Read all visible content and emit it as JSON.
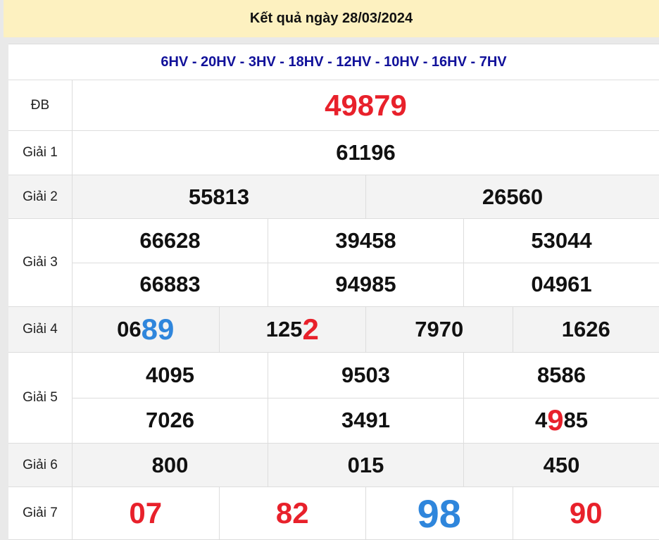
{
  "header": {
    "title": "Kết quả ngày 28/03/2024"
  },
  "codes": "6HV - 20HV - 3HV - 18HV - 12HV - 10HV - 16HV - 7HV",
  "colors": {
    "red": "#e8212b",
    "blue": "#2f86dc",
    "black": "#111111",
    "navy": "#11119a",
    "header_bg": "#fdf1c0"
  },
  "prizes": [
    {
      "label": "ĐB",
      "gray": false,
      "lines": [
        [
          [
            {
              "t": "49879",
              "c": "red",
              "s": "big"
            }
          ]
        ]
      ]
    },
    {
      "label": "Giải 1",
      "gray": false,
      "lines": [
        [
          [
            {
              "t": "61196"
            }
          ]
        ]
      ]
    },
    {
      "label": "Giải 2",
      "gray": true,
      "lines": [
        [
          [
            {
              "t": "55813"
            }
          ],
          [
            {
              "t": "26560"
            }
          ]
        ]
      ]
    },
    {
      "label": "Giải 3",
      "gray": false,
      "lines": [
        [
          [
            {
              "t": "66628"
            }
          ],
          [
            {
              "t": "39458"
            }
          ],
          [
            {
              "t": "53044"
            }
          ]
        ],
        [
          [
            {
              "t": "66883"
            }
          ],
          [
            {
              "t": "94985"
            }
          ],
          [
            {
              "t": "04961"
            }
          ]
        ]
      ]
    },
    {
      "label": "Giải 4",
      "gray": true,
      "lines": [
        [
          [
            {
              "t": "06"
            },
            {
              "t": "89",
              "c": "blue",
              "s": "big"
            }
          ],
          [
            {
              "t": "125"
            },
            {
              "t": "2",
              "c": "red",
              "s": "big"
            }
          ],
          [
            {
              "t": "7970"
            }
          ],
          [
            {
              "t": "1626"
            }
          ]
        ]
      ]
    },
    {
      "label": "Giải 5",
      "gray": false,
      "lines": [
        [
          [
            {
              "t": "4095"
            }
          ],
          [
            {
              "t": "9503"
            }
          ],
          [
            {
              "t": "8586"
            }
          ]
        ],
        [
          [
            {
              "t": "7026"
            }
          ],
          [
            {
              "t": "3491"
            }
          ],
          [
            {
              "t": "4"
            },
            {
              "t": "9",
              "c": "red",
              "s": "big"
            },
            {
              "t": "85"
            }
          ]
        ]
      ]
    },
    {
      "label": "Giải 6",
      "gray": true,
      "lines": [
        [
          [
            {
              "t": "800"
            }
          ],
          [
            {
              "t": "015"
            }
          ],
          [
            {
              "t": "450"
            }
          ]
        ]
      ]
    },
    {
      "label": "Giải 7",
      "gray": false,
      "lines": [
        [
          [
            {
              "t": "07",
              "c": "red",
              "s": "big"
            }
          ],
          [
            {
              "t": "82",
              "c": "red",
              "s": "big"
            }
          ],
          [
            {
              "t": "98",
              "c": "blue",
              "s": "huge"
            }
          ],
          [
            {
              "t": "90",
              "c": "red",
              "s": "big"
            }
          ]
        ]
      ]
    }
  ]
}
